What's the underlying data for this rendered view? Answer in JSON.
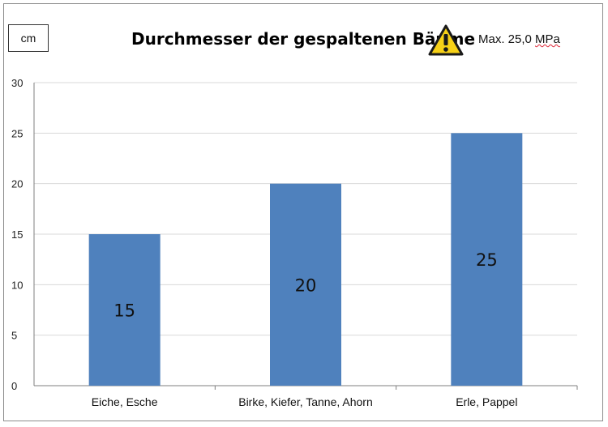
{
  "unit_label": "cm",
  "warning_note": {
    "prefix": "Max. 25,0 ",
    "unit": "MPa",
    "icon": "warning-triangle-icon",
    "icon_color": "#f7d117"
  },
  "colors": {
    "bar": "#4f81bd",
    "grid": "#d9d9d9",
    "axis": "#7f7f7f"
  },
  "chart_data": {
    "type": "bar",
    "title": "Durchmesser der gespaltenen Bäume",
    "categories": [
      "Eiche, Esche",
      "Birke, Kiefer, Tanne, Ahorn",
      "Erle, Pappel"
    ],
    "values": [
      15,
      20,
      25
    ],
    "data_labels": [
      "15",
      "20",
      "25"
    ],
    "ylim": [
      0,
      30
    ],
    "yticks": [
      0,
      5,
      10,
      15,
      20,
      25,
      30
    ],
    "grid": true,
    "xlabel": "",
    "ylabel": "cm"
  }
}
